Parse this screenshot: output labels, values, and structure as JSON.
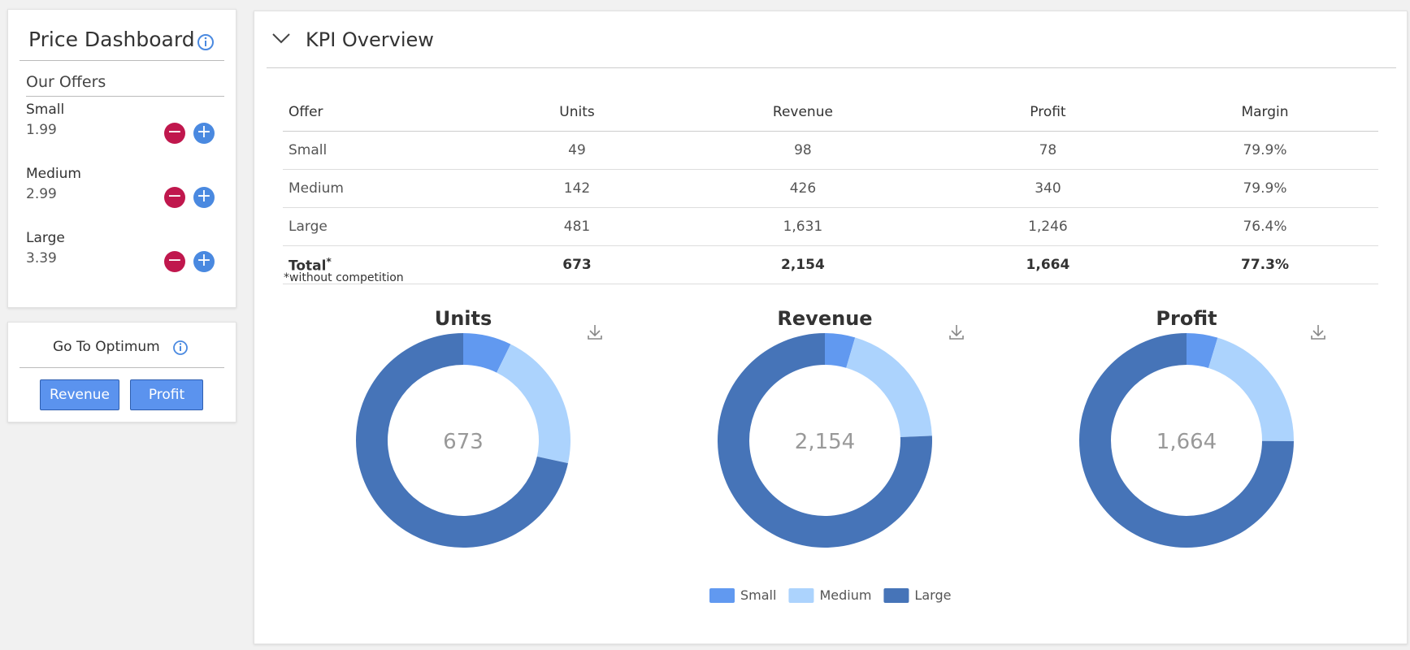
{
  "sidebar": {
    "title": "Price Dashboard",
    "section": "Our Offers",
    "offers": [
      {
        "name": "Small",
        "price": "1.99"
      },
      {
        "name": "Medium",
        "price": "2.99"
      },
      {
        "name": "Large",
        "price": "3.39"
      }
    ]
  },
  "optimum": {
    "title": "Go To Optimum",
    "buttons": [
      "Revenue",
      "Profit"
    ]
  },
  "kpi": {
    "title": "KPI Overview",
    "table": {
      "header": [
        "Offer",
        "Units",
        "Revenue",
        "Profit",
        "Margin"
      ],
      "rows": [
        [
          "Small",
          "49",
          "98",
          "78",
          "79.9%"
        ],
        [
          "Medium",
          "142",
          "426",
          "340",
          "79.9%"
        ],
        [
          "Large",
          "481",
          "1,631",
          "1,246",
          "76.4%"
        ],
        [
          "Total",
          "673",
          "2,154",
          "1,664",
          "77.3%"
        ]
      ]
    },
    "total_mark": "*",
    "footnote": "*without competition"
  },
  "chart_data": [
    {
      "type": "pie",
      "title": "Units",
      "categories": [
        "Small",
        "Medium",
        "Large"
      ],
      "values": [
        49,
        142,
        481
      ],
      "colors": [
        "#6199f0",
        "#acd3fd",
        "#4674b8"
      ],
      "center_label": "673"
    },
    {
      "type": "pie",
      "title": "Revenue",
      "categories": [
        "Small",
        "Medium",
        "Large"
      ],
      "values": [
        98,
        426,
        1631
      ],
      "colors": [
        "#6199f0",
        "#acd3fd",
        "#4674b8"
      ],
      "center_label": "2,154"
    },
    {
      "type": "pie",
      "title": "Profit",
      "categories": [
        "Small",
        "Medium",
        "Large"
      ],
      "values": [
        78,
        340,
        1246
      ],
      "colors": [
        "#6199f0",
        "#acd3fd",
        "#4674b8"
      ],
      "center_label": "1,664"
    }
  ]
}
